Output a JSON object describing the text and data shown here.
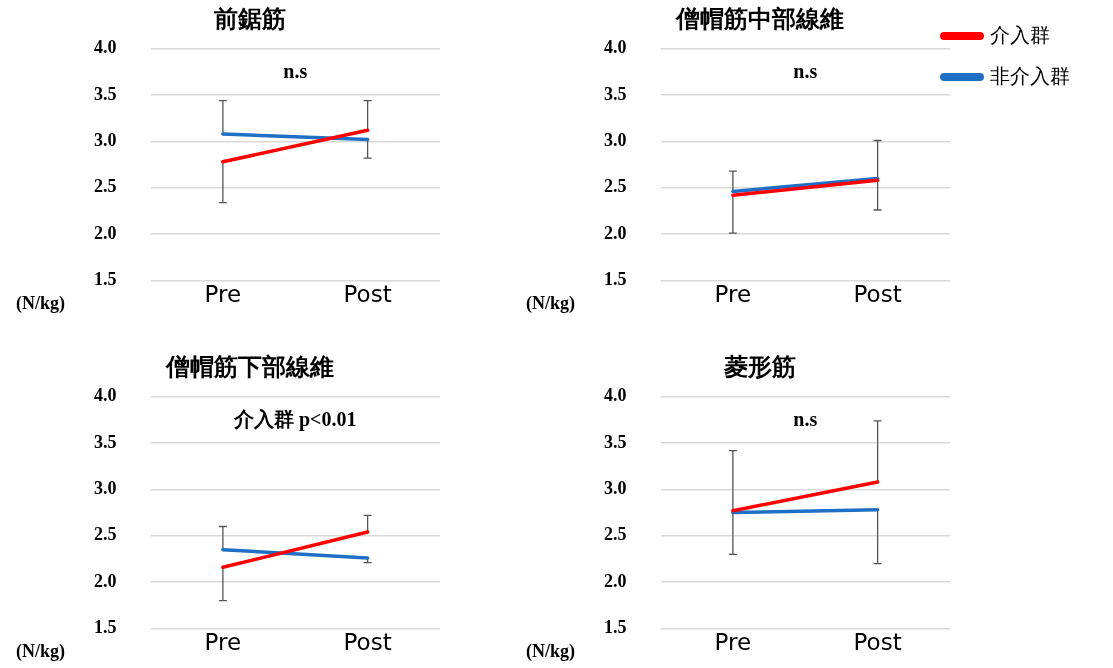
{
  "chart_data": [
    {
      "type": "line",
      "title": "前鋸筋",
      "ylabel": "(N/kg)",
      "categories": [
        "Pre",
        "Post"
      ],
      "ylim": [
        1.5,
        4.0
      ],
      "yticks": [
        {
          "value": 1.5,
          "label": "1.5"
        },
        {
          "value": 2.0,
          "label": "2.0"
        },
        {
          "value": 2.5,
          "label": "2.5"
        },
        {
          "value": 3.0,
          "label": "3.0"
        },
        {
          "value": 3.5,
          "label": "3.5"
        },
        {
          "value": 4.0,
          "label": "4.0"
        }
      ],
      "grid": "y",
      "legend": false,
      "marker": "none",
      "annotations": [
        "n.s"
      ],
      "series": [
        {
          "color": "#ff0000",
          "values": [
            2.78,
            3.12
          ],
          "errors": [
            [
              2.34,
              2.78
            ],
            [
              3.12,
              3.44
            ]
          ]
        },
        {
          "color": "#1f6fc5",
          "values": [
            3.08,
            3.02
          ],
          "errors": [
            [
              3.08,
              3.44
            ],
            [
              2.82,
              3.02
            ]
          ]
        }
      ]
    },
    {
      "type": "line",
      "title": "僧帽筋中部線維",
      "ylabel": "(N/kg)",
      "categories": [
        "Pre",
        "Post"
      ],
      "ylim": [
        1.5,
        4.0
      ],
      "yticks": [
        {
          "value": 1.5,
          "label": "1.5"
        },
        {
          "value": 2.0,
          "label": "2.0"
        },
        {
          "value": 2.5,
          "label": "2.5"
        },
        {
          "value": 3.0,
          "label": "3.0"
        },
        {
          "value": 3.5,
          "label": "3.5"
        },
        {
          "value": 4.0,
          "label": "4.0"
        }
      ],
      "grid": "y",
      "legend": "right",
      "marker": "none",
      "annotations": [
        "n.s"
      ],
      "series": [
        {
          "name": "介入群",
          "color": "#ff0000",
          "values": [
            2.42,
            2.58
          ],
          "errors": [
            [
              2.01,
              2.42
            ],
            [
              2.58,
              3.01
            ]
          ]
        },
        {
          "name": "非介入群",
          "color": "#1f6fc5",
          "values": [
            2.46,
            2.6
          ],
          "errors": [
            [
              2.46,
              2.68
            ],
            [
              2.26,
              2.6
            ]
          ]
        }
      ]
    },
    {
      "type": "line",
      "title": "僧帽筋下部線維",
      "ylabel": "(N/kg)",
      "categories": [
        "Pre",
        "Post"
      ],
      "ylim": [
        1.5,
        4.0
      ],
      "yticks": [
        {
          "value": 1.5,
          "label": "1.5"
        },
        {
          "value": 2.0,
          "label": "2.0"
        },
        {
          "value": 2.5,
          "label": "2.5"
        },
        {
          "value": 3.0,
          "label": "3.0"
        },
        {
          "value": 3.5,
          "label": "3.5"
        },
        {
          "value": 4.0,
          "label": "4.0"
        }
      ],
      "grid": "y",
      "legend": false,
      "marker": "none",
      "annotations": [
        "介入群 p<0.01"
      ],
      "series": [
        {
          "color": "#ff0000",
          "values": [
            2.16,
            2.54
          ],
          "errors": [
            [
              1.8,
              2.16
            ],
            [
              2.54,
              2.72
            ]
          ]
        },
        {
          "color": "#1f6fc5",
          "values": [
            2.35,
            2.26
          ],
          "errors": [
            [
              2.35,
              2.6
            ],
            [
              2.21,
              2.26
            ]
          ]
        }
      ]
    },
    {
      "type": "line",
      "title": "菱形筋",
      "ylabel": "(N/kg)",
      "categories": [
        "Pre",
        "Post"
      ],
      "ylim": [
        1.5,
        4.0
      ],
      "yticks": [
        {
          "value": 1.5,
          "label": "1.5"
        },
        {
          "value": 2.0,
          "label": "2.0"
        },
        {
          "value": 2.5,
          "label": "2.5"
        },
        {
          "value": 3.0,
          "label": "3.0"
        },
        {
          "value": 3.5,
          "label": "3.5"
        },
        {
          "value": 4.0,
          "label": "4.0"
        }
      ],
      "grid": "y",
      "legend": false,
      "marker": "none",
      "annotations": [
        "n.s"
      ],
      "series": [
        {
          "color": "#ff0000",
          "values": [
            2.77,
            3.08
          ],
          "errors": [
            [
              2.3,
              2.77
            ],
            [
              3.08,
              3.74
            ]
          ]
        },
        {
          "color": "#1f6fc5",
          "values": [
            2.75,
            2.78
          ],
          "errors": [
            [
              2.75,
              3.42
            ],
            [
              2.2,
              2.78
            ]
          ]
        }
      ]
    }
  ]
}
